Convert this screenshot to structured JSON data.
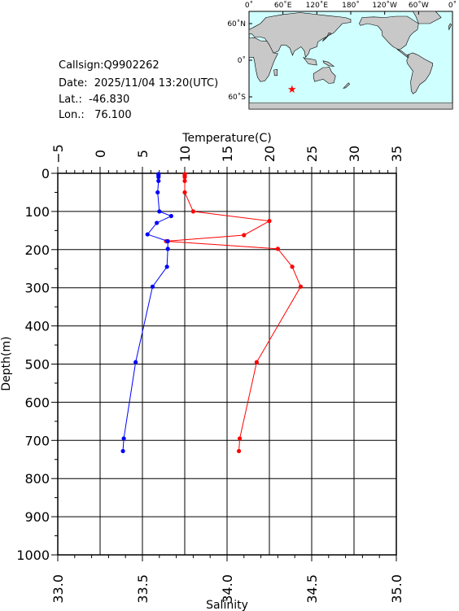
{
  "info": {
    "callsign": "Callsign:Q9902262",
    "date": "Date:  2025/11/04 13:20(UTC)",
    "lat": "Lat.:  -46.830",
    "lon": "Lon.:   76.100"
  },
  "map": {
    "lon_ticks": [
      "0˚",
      "60˚E",
      "120˚E",
      "180˚",
      "120˚W",
      "60˚W",
      "0˚"
    ],
    "lat_ticks": [
      "60˚N",
      "0˚",
      "60˚S"
    ],
    "ocean_color": "#cfffff",
    "land_color": "#c8c8c8",
    "marker_icon": "red-star-icon",
    "marker_lat": -46.83,
    "marker_lon": 76.1
  },
  "chart_data": {
    "type": "line",
    "ylabel": "Depth(m)",
    "ylim": [
      1000,
      0
    ],
    "yticks": [
      "0",
      "100",
      "200",
      "300",
      "400",
      "500",
      "600",
      "700",
      "800",
      "900",
      "1000"
    ],
    "grid": true,
    "temperature_axis": {
      "label": "Temperature(C)",
      "range": [
        -5,
        35
      ],
      "ticks": [
        "−5",
        "0",
        "5",
        "10",
        "15",
        "20",
        "25",
        "30",
        "35"
      ]
    },
    "salinity_axis": {
      "label": "Salinity",
      "range": [
        33.0,
        35.0
      ],
      "ticks": [
        "33.0",
        "33.5",
        "34.0",
        "34.5",
        "35.0"
      ]
    },
    "series": [
      {
        "axis": "temperature",
        "color": "#ff0000",
        "depth": [
          2,
          5,
          10,
          20,
          50,
          100,
          125,
          162,
          178,
          198,
          245,
          297,
          495,
          695,
          728
        ],
        "values": [
          10.0,
          10.0,
          10.0,
          10.0,
          10.0,
          11.0,
          20.0,
          17.0,
          7.8,
          21.0,
          22.7,
          23.7,
          18.5,
          16.5,
          16.4
        ]
      },
      {
        "axis": "salinity",
        "color": "#0000ff",
        "depth": [
          2,
          5,
          10,
          20,
          50,
          100,
          112,
          130,
          160,
          178,
          198,
          245,
          297,
          495,
          695,
          728
        ],
        "values": [
          33.595,
          33.595,
          33.595,
          33.595,
          33.59,
          33.6,
          33.67,
          33.585,
          33.53,
          33.65,
          33.65,
          33.645,
          33.56,
          33.46,
          33.39,
          33.385
        ]
      }
    ]
  }
}
